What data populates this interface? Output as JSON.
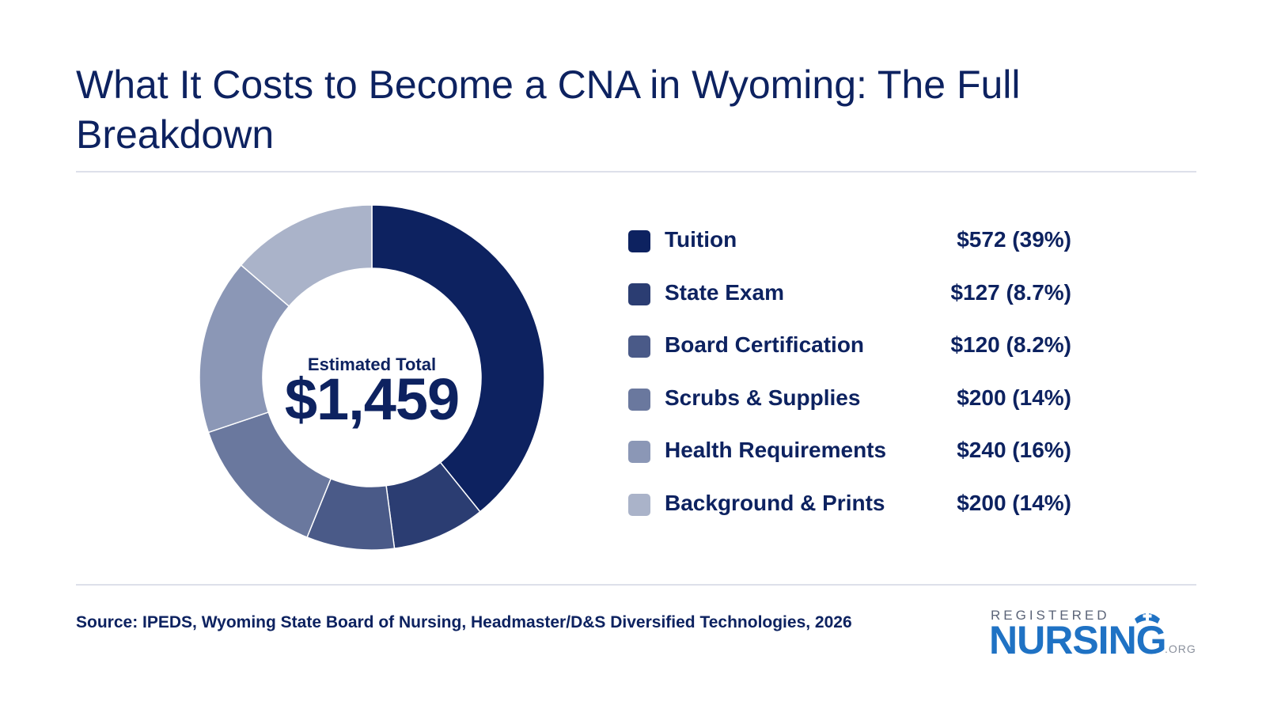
{
  "title": "What It Costs to Become a CNA in Wyoming: The Full Breakdown",
  "center": {
    "label": "Estimated Total",
    "value": "$1,459"
  },
  "chart_data": {
    "type": "pie",
    "style": "donut",
    "title": "What It Costs to Become a CNA in Wyoming: The Full Breakdown",
    "total_label": "Estimated Total",
    "total": 1459,
    "legend_position": "right",
    "categories": [
      "Tuition",
      "State Exam",
      "Board Certification",
      "Scrubs & Supplies",
      "Health Requirements",
      "Background & Prints"
    ],
    "values": [
      572,
      127,
      120,
      200,
      240,
      200
    ],
    "value_labels": [
      "$572 (39%)",
      "$127 (8.7%)",
      "$120 (8.2%)",
      "$200 (14%)",
      "$240 (16%)",
      "$200 (14%)"
    ],
    "colors": [
      "#0d2260",
      "#2b3d72",
      "#4a5a88",
      "#6a789e",
      "#8b97b6",
      "#aab3c9"
    ]
  },
  "source": "Source: IPEDS, Wyoming State Board of Nursing, Headmaster/D&S Diversified Technologies, 2026",
  "logo": {
    "top": "REGISTERED",
    "main": "NURSING",
    "suffix": ".ORG",
    "icon": "nurse-cap-cross-icon"
  }
}
